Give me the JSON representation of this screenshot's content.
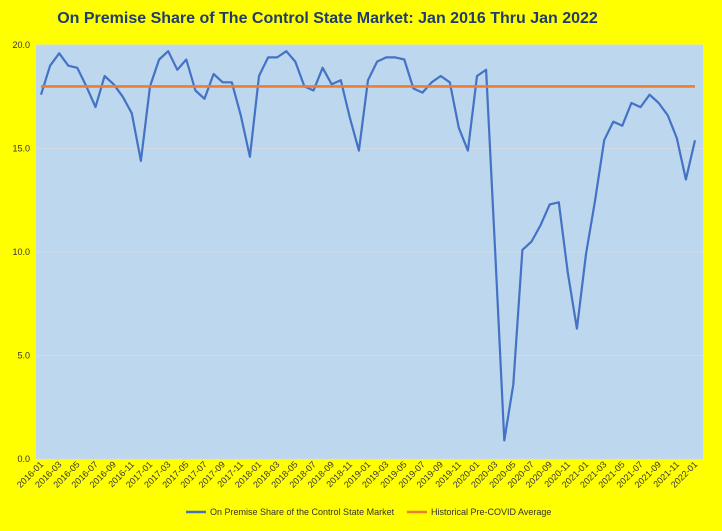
{
  "chart_data": {
    "type": "line",
    "title": "On Premise Share of The Control State Market: Jan 2016 Thru Jan 2022",
    "xlabel": "",
    "ylabel": "",
    "ylim": [
      0,
      20
    ],
    "y_ticks": [
      "0.0",
      "5.0",
      "10.0",
      "15.0",
      "20.0"
    ],
    "grid": true,
    "legend_position": "bottom",
    "x": [
      "2016-01",
      "2016-02",
      "2016-03",
      "2016-04",
      "2016-05",
      "2016-06",
      "2016-07",
      "2016-08",
      "2016-09",
      "2016-10",
      "2016-11",
      "2016-12",
      "2017-01",
      "2017-02",
      "2017-03",
      "2017-04",
      "2017-05",
      "2017-06",
      "2017-07",
      "2017-08",
      "2017-09",
      "2017-10",
      "2017-11",
      "2017-12",
      "2018-01",
      "2018-02",
      "2018-03",
      "2018-04",
      "2018-05",
      "2018-06",
      "2018-07",
      "2018-08",
      "2018-09",
      "2018-10",
      "2018-11",
      "2018-12",
      "2019-01",
      "2019-02",
      "2019-03",
      "2019-04",
      "2019-05",
      "2019-06",
      "2019-07",
      "2019-08",
      "2019-09",
      "2019-10",
      "2019-11",
      "2019-12",
      "2020-01",
      "2020-02",
      "2020-03",
      "2020-04",
      "2020-05",
      "2020-06",
      "2020-07",
      "2020-08",
      "2020-09",
      "2020-10",
      "2020-11",
      "2020-12",
      "2021-01",
      "2021-02",
      "2021-03",
      "2021-04",
      "2021-05",
      "2021-06",
      "2021-07",
      "2021-08",
      "2021-09",
      "2021-10",
      "2021-11",
      "2021-12",
      "2022-01"
    ],
    "x_tick_labels": [
      "2016-01",
      "2016-03",
      "2016-05",
      "2016-07",
      "2016-09",
      "2016-11",
      "2017-01",
      "2017-03",
      "2017-05",
      "2017-07",
      "2017-09",
      "2017-11",
      "2018-01",
      "2018-03",
      "2018-05",
      "2018-07",
      "2018-09",
      "2018-11",
      "2019-01",
      "2019-03",
      "2019-05",
      "2019-07",
      "2019-09",
      "2019-11",
      "2020-01",
      "2020-03",
      "2020-05",
      "2020-07",
      "2020-09",
      "2020-11",
      "2021-01",
      "2021-03",
      "2021-05",
      "2021-07",
      "2021-09",
      "2021-11",
      "2022-01"
    ],
    "series": [
      {
        "name": "On Premise Share of the Control State Market",
        "color": "#4472c4",
        "values": [
          17.6,
          19.0,
          19.6,
          19.0,
          18.9,
          18.0,
          17.0,
          18.5,
          18.1,
          17.5,
          16.7,
          14.4,
          18.0,
          19.3,
          19.7,
          18.8,
          19.3,
          17.8,
          17.4,
          18.6,
          18.2,
          18.2,
          16.6,
          14.6,
          18.5,
          19.4,
          19.4,
          19.7,
          19.2,
          18.0,
          17.8,
          18.9,
          18.1,
          18.3,
          16.5,
          14.9,
          18.3,
          19.2,
          19.4,
          19.4,
          19.3,
          17.9,
          17.7,
          18.2,
          18.5,
          18.2,
          16.0,
          14.9,
          18.5,
          18.8,
          10.0,
          0.9,
          3.6,
          10.1,
          10.5,
          11.3,
          12.3,
          12.4,
          9.0,
          6.3,
          9.9,
          12.5,
          15.4,
          16.3,
          16.1,
          17.2,
          17.0,
          17.6,
          17.2,
          16.6,
          15.5,
          13.5,
          15.4
        ]
      },
      {
        "name": "Historical Pre-COVID Average",
        "color": "#ed7d31",
        "values": [
          18.0,
          18.0,
          18.0,
          18.0,
          18.0,
          18.0,
          18.0,
          18.0,
          18.0,
          18.0,
          18.0,
          18.0,
          18.0,
          18.0,
          18.0,
          18.0,
          18.0,
          18.0,
          18.0,
          18.0,
          18.0,
          18.0,
          18.0,
          18.0,
          18.0,
          18.0,
          18.0,
          18.0,
          18.0,
          18.0,
          18.0,
          18.0,
          18.0,
          18.0,
          18.0,
          18.0,
          18.0,
          18.0,
          18.0,
          18.0,
          18.0,
          18.0,
          18.0,
          18.0,
          18.0,
          18.0,
          18.0,
          18.0,
          18.0,
          18.0,
          18.0,
          18.0,
          18.0,
          18.0,
          18.0,
          18.0,
          18.0,
          18.0,
          18.0,
          18.0,
          18.0,
          18.0,
          18.0,
          18.0,
          18.0,
          18.0,
          18.0,
          18.0,
          18.0,
          18.0,
          18.0,
          18.0,
          18.0
        ]
      }
    ]
  }
}
